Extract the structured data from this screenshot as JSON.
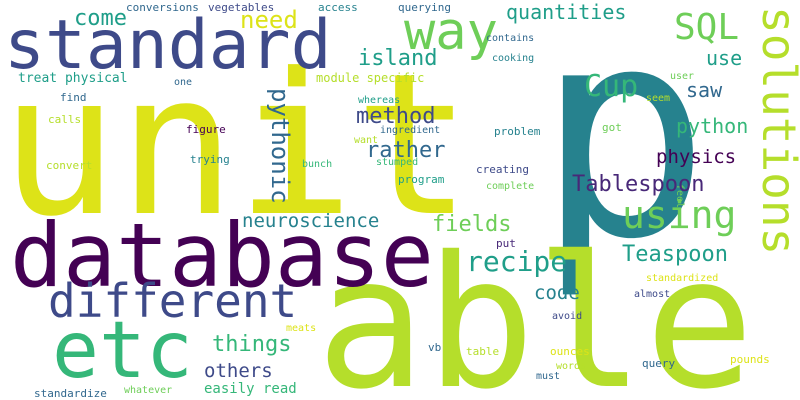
{
  "background": "#ffffff",
  "palette": {
    "purple": "#440154",
    "indigo": "#482878",
    "blue": "#3e4a89",
    "slate": "#31688e",
    "teal": "#26828e",
    "teal_green": "#1f9e89",
    "green": "#35b779",
    "bright_green": "#6ece58",
    "lime": "#b5de2b",
    "yellow": "#dde318"
  },
  "words": [
    {
      "text": "unit"
    },
    {
      "text": "p"
    },
    {
      "text": "able"
    },
    {
      "text": "database"
    },
    {
      "text": "standard"
    },
    {
      "text": "etc"
    },
    {
      "text": "different"
    },
    {
      "text": "solutions"
    },
    {
      "text": "way"
    },
    {
      "text": "using"
    },
    {
      "text": "SQL"
    },
    {
      "text": "Tablespoon"
    },
    {
      "text": "Teaspoon"
    },
    {
      "text": "recipe"
    },
    {
      "text": "neuroscience"
    },
    {
      "text": "pythonic"
    },
    {
      "text": "Cup"
    },
    {
      "text": "quantities"
    },
    {
      "text": "come"
    },
    {
      "text": "need"
    },
    {
      "text": "island"
    },
    {
      "text": "use"
    },
    {
      "text": "method"
    },
    {
      "text": "rather"
    },
    {
      "text": "physics"
    },
    {
      "text": "python"
    },
    {
      "text": "saw"
    },
    {
      "text": "fields"
    },
    {
      "text": "code"
    },
    {
      "text": "things"
    },
    {
      "text": "others"
    },
    {
      "text": "easily read"
    },
    {
      "text": "module specific"
    },
    {
      "text": "treat physical"
    },
    {
      "text": "conversions"
    },
    {
      "text": "vegetables"
    },
    {
      "text": "access"
    },
    {
      "text": "querying"
    },
    {
      "text": "contains"
    },
    {
      "text": "cooking"
    },
    {
      "text": "user"
    },
    {
      "text": "one"
    },
    {
      "text": "find"
    },
    {
      "text": "calls"
    },
    {
      "text": "figure"
    },
    {
      "text": "whereas"
    },
    {
      "text": "ingredient"
    },
    {
      "text": "want"
    },
    {
      "text": "bunch"
    },
    {
      "text": "stumped"
    },
    {
      "text": "trying"
    },
    {
      "text": "convert"
    },
    {
      "text": "program"
    },
    {
      "text": "creating"
    },
    {
      "text": "complete"
    },
    {
      "text": "problem"
    },
    {
      "text": "seem"
    },
    {
      "text": "got"
    },
    {
      "text": "feel"
    },
    {
      "text": "put"
    },
    {
      "text": "standardized"
    },
    {
      "text": "almost"
    },
    {
      "text": "avoid"
    },
    {
      "text": "meats"
    },
    {
      "text": "vb"
    },
    {
      "text": "table"
    },
    {
      "text": "ounces"
    },
    {
      "text": "words"
    },
    {
      "text": "must"
    },
    {
      "text": "query"
    },
    {
      "text": "pounds"
    },
    {
      "text": "standardize"
    },
    {
      "text": "whatever"
    }
  ]
}
